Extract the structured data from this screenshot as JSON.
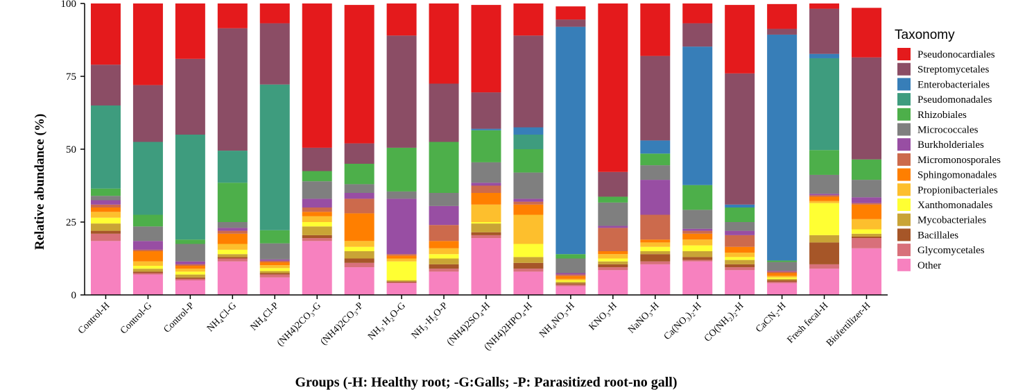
{
  "chart_data": {
    "type": "bar",
    "stacked": true,
    "xlabel": "Groups (-H: Healthy root;  -G:Galls; -P: Parasitized root-no gall)",
    "ylabel": "Relative abundance (%)",
    "ylim": [
      0,
      100
    ],
    "yticks": [
      "0",
      "25",
      "50",
      "75",
      "100"
    ],
    "legend_title": "Taxonomy",
    "legend_position": "right",
    "categories": [
      "Control-H",
      "Control-G",
      "Control-P",
      "NH₄Cl-G",
      "NH₄Cl-P",
      "(NH4)2CO₃-G",
      "(NH4)2CO₃-P",
      "NH₃·H₂O-G",
      "NH₃·H₂O-P",
      "(NH4)2SO₄-H",
      "(NH4)2HPO₄-H",
      "NH₄NO₃-H",
      "KNO₃-H",
      "NaNO₃-H",
      "Ca(NO₃)₂-H",
      "CO(NH₂)₂-H",
      "CaCN₂-H",
      "Fresh fecal-H",
      "Biofertilizer-H"
    ],
    "series": [
      {
        "name": "Other",
        "color": "#f781bf",
        "values": [
          18.5,
          7,
          5,
          11.5,
          6,
          18.5,
          9.5,
          4,
          8,
          19.5,
          8,
          3,
          8.5,
          10.5,
          11.5,
          8.5,
          4,
          9,
          16
        ]
      },
      {
        "name": "Glycomycetales",
        "color": "#d8707a",
        "values": [
          2.5,
          0.5,
          0.5,
          1,
          1,
          1,
          1.5,
          0.3,
          1,
          1,
          1,
          0.5,
          1,
          1,
          0.5,
          1,
          0.5,
          1.5,
          3.5
        ]
      },
      {
        "name": "Bacillales",
        "color": "#a65628",
        "values": [
          1,
          0.5,
          0.5,
          0.5,
          0.5,
          1,
          1.5,
          0.3,
          1.5,
          1,
          2,
          0.5,
          1,
          2.5,
          1,
          1,
          0.5,
          7.5,
          0.5
        ]
      },
      {
        "name": "Mycobacteriales",
        "color": "#c9a436",
        "values": [
          2.5,
          1,
          1,
          1,
          0.7,
          3,
          2.5,
          0.4,
          2,
          3,
          2,
          0.5,
          1,
          1,
          2,
          1.5,
          0.5,
          2.5,
          1
        ]
      },
      {
        "name": "Xanthomonadales",
        "color": "#ffff33",
        "values": [
          2,
          1,
          1,
          1.5,
          1,
          1.5,
          1.5,
          6.5,
          1.5,
          0.5,
          4.5,
          0.5,
          1,
          1.5,
          2,
          1,
          0.5,
          11,
          1.5
        ]
      },
      {
        "name": "Propionibacteriales",
        "color": "#fdbf2d",
        "values": [
          2,
          1.5,
          1,
          2,
          1,
          2,
          2,
          1,
          2,
          6,
          10,
          0.5,
          1.5,
          1.5,
          2,
          1.5,
          0.5,
          0.7,
          3.5
        ]
      },
      {
        "name": "Sphingomonadales",
        "color": "#ff7f00",
        "values": [
          1.5,
          3.5,
          1,
          3.5,
          1,
          1.5,
          9.5,
          1,
          2.5,
          4,
          3.5,
          1,
          1,
          1,
          2,
          2,
          1,
          1.5,
          5
        ]
      },
      {
        "name": "Micromonosporales",
        "color": "#cc6a4c",
        "values": [
          1,
          0.5,
          0.5,
          1,
          0.5,
          1.5,
          5,
          0.5,
          5.5,
          2.5,
          1,
          0.5,
          8,
          8.5,
          1,
          4,
          0.5,
          0.5,
          0.5
        ]
      },
      {
        "name": "Burkholderiales",
        "color": "#984ea3",
        "values": [
          1.5,
          3,
          1,
          1,
          0.5,
          3,
          2,
          19,
          6.5,
          1,
          1,
          0.5,
          0.7,
          12,
          0.7,
          1.5,
          0.3,
          0.5,
          2
        ]
      },
      {
        "name": "Micrococcales",
        "color": "#7f7f7f",
        "values": [
          1.5,
          5,
          6,
          2,
          5.5,
          6,
          3,
          2.5,
          4.5,
          7,
          9,
          5,
          8,
          5,
          6.5,
          3,
          3,
          6.5,
          6
        ]
      },
      {
        "name": "Rhizobiales",
        "color": "#4daf4a",
        "values": [
          2.5,
          4,
          1.5,
          13.5,
          4.5,
          3.5,
          7,
          15,
          17.5,
          11,
          8,
          1.5,
          2,
          4,
          8.5,
          5,
          0.5,
          8.5,
          7
        ]
      },
      {
        "name": "Pseudomonadales",
        "color": "#3e9c7e",
        "values": [
          28.5,
          25,
          36,
          11,
          50,
          0,
          0,
          0,
          0,
          0,
          5,
          0,
          0,
          0,
          0,
          0,
          0,
          31.5,
          0
        ]
      },
      {
        "name": "Enterobacteriales",
        "color": "#377eb8",
        "values": [
          0,
          0,
          0,
          0,
          0,
          0,
          0,
          0,
          0,
          0.5,
          2.5,
          78,
          0,
          4.5,
          47.5,
          1,
          77.5,
          1.5,
          0
        ]
      },
      {
        "name": "Streptomycetales",
        "color": "#8b4d65",
        "values": [
          14,
          19.5,
          26,
          42,
          21,
          8,
          7,
          38.5,
          20,
          12.5,
          31.5,
          2.5,
          8.5,
          29,
          8,
          45,
          2,
          15.5,
          35
        ]
      },
      {
        "name": "Pseudonocardiales",
        "color": "#e41a1c",
        "values": [
          22,
          29,
          20.5,
          8.5,
          7.5,
          50,
          47.5,
          11.5,
          27.5,
          30,
          11.5,
          4.5,
          58,
          19,
          7,
          23.5,
          8.5,
          2,
          17
        ]
      }
    ]
  }
}
